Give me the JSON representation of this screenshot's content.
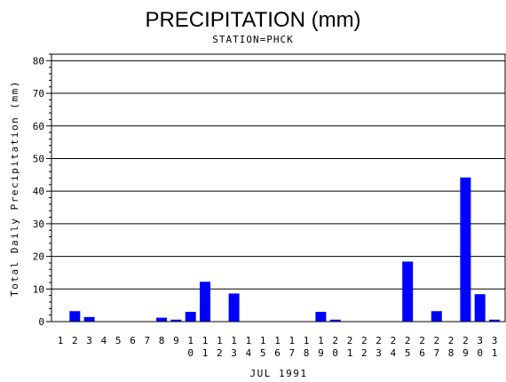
{
  "chart_data": {
    "type": "bar",
    "title": "PRECIPITATION (mm)",
    "subtitle": "STATION=PHCK",
    "xlabel": "JUL 1991",
    "ylabel": "Total Daily Precipitation (mm)",
    "ylim": [
      0,
      82
    ],
    "yticks": [
      0,
      10,
      20,
      30,
      40,
      50,
      60,
      70,
      80
    ],
    "grid": true,
    "bar_color": "#0000ff",
    "categories": [
      "1",
      "2",
      "3",
      "4",
      "5",
      "6",
      "7",
      "8",
      "9",
      "10",
      "11",
      "12",
      "13",
      "14",
      "15",
      "16",
      "17",
      "18",
      "19",
      "20",
      "21",
      "22",
      "23",
      "24",
      "25",
      "26",
      "27",
      "28",
      "29",
      "30",
      "31"
    ],
    "values": [
      0,
      3.2,
      1.4,
      0,
      0,
      0,
      0,
      1.2,
      0.6,
      3.0,
      12.2,
      0,
      8.6,
      0,
      0,
      0,
      0,
      0,
      3.0,
      0.6,
      0,
      0,
      0,
      0,
      18.4,
      0,
      3.2,
      0,
      44.2,
      8.4,
      0.6
    ]
  }
}
